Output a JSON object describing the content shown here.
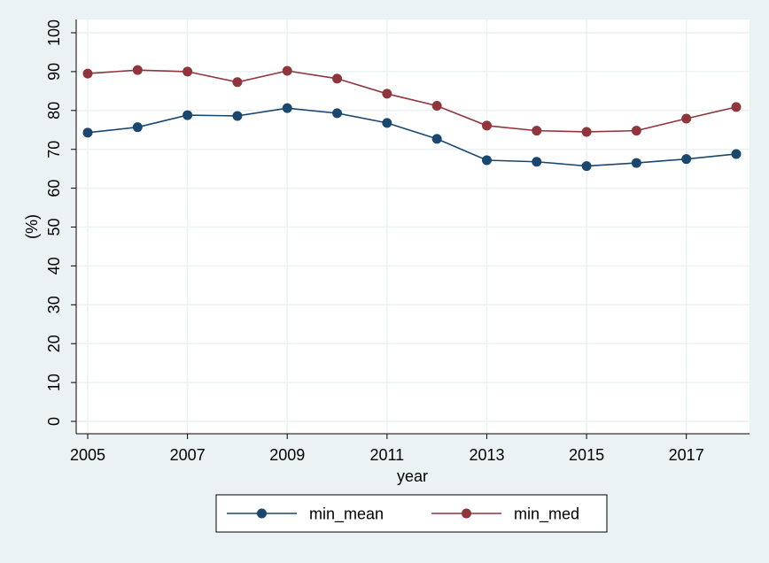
{
  "chart_data": {
    "type": "line",
    "xlabel": "year",
    "ylabel": "(%)",
    "x": [
      2005,
      2006,
      2007,
      2008,
      2009,
      2010,
      2011,
      2012,
      2013,
      2014,
      2015,
      2016,
      2017,
      2018
    ],
    "xticks": [
      "2005",
      "2007",
      "2009",
      "2011",
      "2013",
      "2015",
      "2017"
    ],
    "yticks": [
      "0",
      "10",
      "20",
      "30",
      "40",
      "50",
      "60",
      "70",
      "80",
      "90",
      "100"
    ],
    "xlim": [
      2005,
      2018
    ],
    "ylim": [
      0,
      100
    ],
    "grid": true,
    "legend_position": "bottom",
    "series": [
      {
        "name": "min_mean",
        "color": "#1a476f",
        "values": [
          74.3,
          75.7,
          78.8,
          78.6,
          80.6,
          79.3,
          76.8,
          72.7,
          67.2,
          66.8,
          65.7,
          66.5,
          67.5,
          68.8
        ]
      },
      {
        "name": "min_med",
        "color": "#90353b",
        "values": [
          89.5,
          90.4,
          90.0,
          87.3,
          90.2,
          88.2,
          84.3,
          81.2,
          76.1,
          74.8,
          74.5,
          74.8,
          77.9,
          80.9
        ]
      }
    ]
  }
}
